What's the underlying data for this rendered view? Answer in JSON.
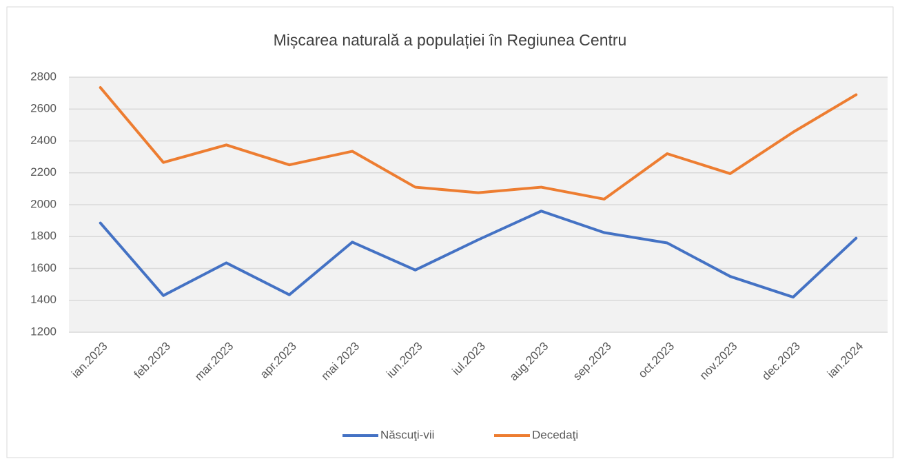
{
  "chart_data": {
    "type": "line",
    "title": "Mișcarea naturală a populației în Regiunea Centru",
    "categories": [
      "ian.2023",
      "feb.2023",
      "mar.2023",
      "apr.2023",
      "mai 2023",
      "iun.2023",
      "iul.2023",
      "aug.2023",
      "sep.2023",
      "oct.2023",
      "nov.2023",
      "dec.2023",
      "ian.2024"
    ],
    "series": [
      {
        "name": "Născuţi-vii",
        "color": "#4472c4",
        "values": [
          1885,
          1430,
          1635,
          1435,
          1765,
          1590,
          1780,
          1960,
          1825,
          1760,
          1550,
          1420,
          1790
        ]
      },
      {
        "name": "Decedaţi",
        "color": "#ed7d31",
        "values": [
          2735,
          2265,
          2375,
          2250,
          2335,
          2110,
          2075,
          2110,
          2035,
          2320,
          2195,
          2455,
          2690
        ]
      }
    ],
    "ylim": [
      1200,
      2800
    ],
    "yticks": [
      1200,
      1400,
      1600,
      1800,
      2000,
      2200,
      2400,
      2600,
      2800
    ],
    "grid": true,
    "legend": "bottom"
  }
}
